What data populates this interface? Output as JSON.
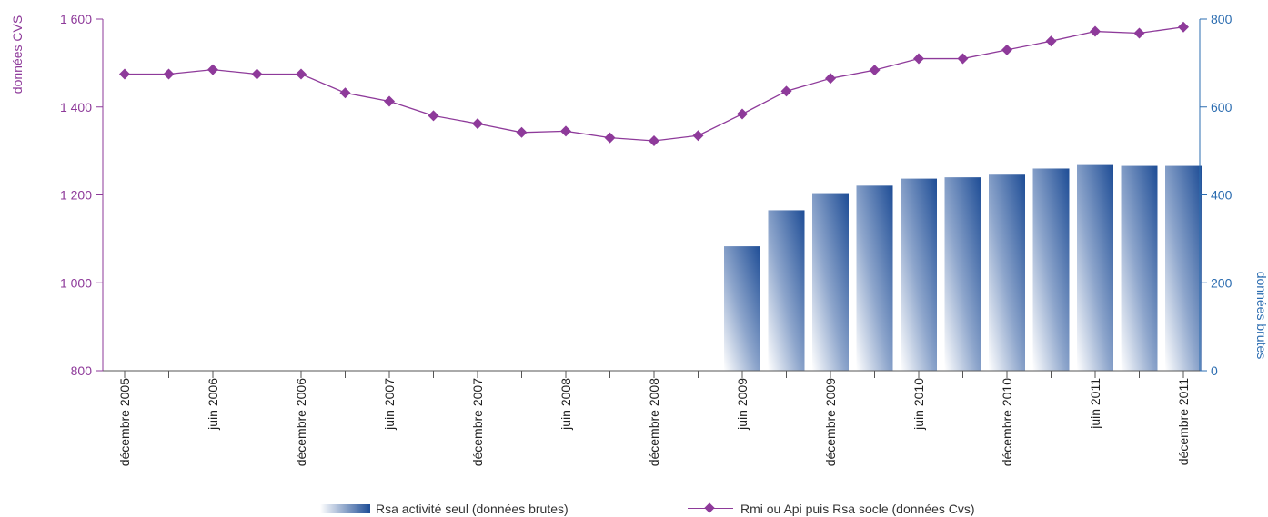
{
  "chart_data": {
    "type": "bar+line",
    "x_labels": [
      "décembre 2005",
      "",
      "juin 2006",
      "",
      "décembre 2006",
      "",
      "juin 2007",
      "",
      "décembre 2007",
      "",
      "juin 2008",
      "",
      "décembre 2008",
      "",
      "juin 2009",
      "",
      "décembre 2009",
      "",
      "juin 2010",
      "",
      "décembre 2010",
      "",
      "juin 2011",
      "",
      "décembre 2011"
    ],
    "series": [
      {
        "name": "Rmi ou Api puis Rsa socle (données Cvs)",
        "type": "line",
        "axis": "left",
        "color": "#8e3a9a",
        "values": [
          1475,
          1475,
          1485,
          1475,
          1475,
          1432,
          1413,
          1380,
          1362,
          1342,
          1345,
          1330,
          1323,
          1335,
          1384,
          1436,
          1465,
          1484,
          1510,
          1510,
          1530,
          1550,
          1572,
          1568,
          1582
        ]
      },
      {
        "name": "Rsa activité seul (données brutes)",
        "type": "bar",
        "axis": "right",
        "color": "#1e4d96",
        "values": [
          null,
          null,
          null,
          null,
          null,
          null,
          null,
          null,
          null,
          null,
          null,
          null,
          null,
          null,
          283,
          365,
          404,
          421,
          437,
          440,
          446,
          460,
          468,
          466,
          466
        ]
      }
    ],
    "y_left": {
      "label": "données CVS",
      "min": 800,
      "max": 1600,
      "ticks": [
        800,
        1000,
        1200,
        1400,
        1600
      ],
      "tick_labels": [
        "800",
        "1 000",
        "1 200",
        "1 400",
        "1 600"
      ],
      "color": "#8e3a9a"
    },
    "y_right": {
      "label": "données brutes",
      "min": 0,
      "max": 800,
      "ticks": [
        0,
        200,
        400,
        600,
        800
      ],
      "tick_labels": [
        "0",
        "200",
        "400",
        "600",
        "800"
      ],
      "color": "#2b6cb0"
    },
    "legend_position": "bottom",
    "grid": false
  }
}
